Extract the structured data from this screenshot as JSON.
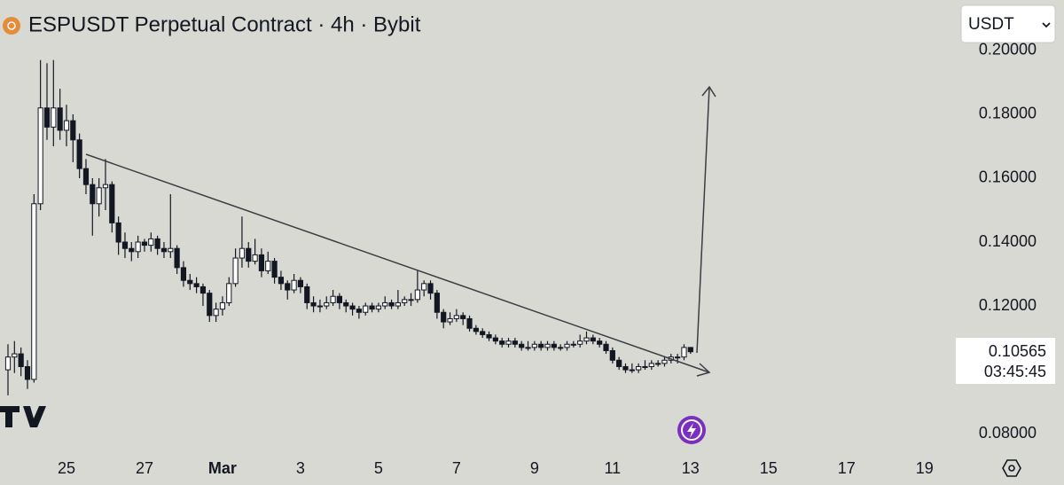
{
  "chart_data": {
    "type": "candlestick",
    "title": "ESPUSDT Perpetual Contract · 4h · Bybit",
    "currency": "USDT",
    "countdown": "03:45:45",
    "colors": {
      "up": "#ffffff",
      "down": "#131722",
      "outline": "#131722"
    },
    "xlim": [
      -1.227,
      145.4
    ],
    "ylim": [
      0.0742,
      0.2158
    ],
    "xticks": [
      {
        "value": 9,
        "label": "25"
      },
      {
        "value": 21,
        "label": "27"
      },
      {
        "value": 33,
        "label": "Mar"
      },
      {
        "value": 45,
        "label": "3"
      },
      {
        "value": 57,
        "label": "5"
      },
      {
        "value": 69,
        "label": "7"
      },
      {
        "value": 81,
        "label": "9"
      },
      {
        "value": 93,
        "label": "11"
      },
      {
        "value": 105,
        "label": "13"
      },
      {
        "value": 117,
        "label": "15"
      },
      {
        "value": 129,
        "label": "17"
      },
      {
        "value": 141,
        "label": "19"
      }
    ],
    "yticks": [
      {
        "value": 0.08,
        "label": "0.08000"
      },
      {
        "value": 0.12,
        "label": "0.12000"
      },
      {
        "value": 0.14,
        "label": "0.14000"
      },
      {
        "value": 0.16,
        "label": "0.16000"
      },
      {
        "value": 0.18,
        "label": "0.18000"
      },
      {
        "value": 0.2,
        "label": "0.20000"
      }
    ],
    "x": [
      0,
      1,
      2,
      3,
      4,
      5,
      6,
      7,
      8,
      9,
      10,
      11,
      12,
      13,
      14,
      15,
      16,
      17,
      18,
      19,
      20,
      21,
      22,
      23,
      24,
      25,
      26,
      27,
      28,
      29,
      30,
      31,
      32,
      33,
      34,
      35,
      36,
      37,
      38,
      39,
      40,
      41,
      42,
      43,
      44,
      45,
      46,
      47,
      48,
      49,
      50,
      51,
      52,
      53,
      54,
      55,
      56,
      57,
      58,
      59,
      60,
      61,
      62,
      63,
      64,
      65,
      66,
      67,
      68,
      69,
      70,
      71,
      72,
      73,
      74,
      75,
      76,
      77,
      78,
      79,
      80,
      81,
      82,
      83,
      84,
      85,
      86,
      87,
      88,
      89,
      90,
      91,
      92,
      93,
      94,
      95,
      96,
      97,
      98,
      99,
      100,
      101,
      102,
      103,
      104,
      105
    ],
    "candles": [
      [
        0.1,
        0.108,
        0.092,
        0.104
      ],
      [
        0.104,
        0.109,
        0.099,
        0.105
      ],
      [
        0.105,
        0.107,
        0.098,
        0.101
      ],
      [
        0.101,
        0.103,
        0.094,
        0.097
      ],
      [
        0.097,
        0.155,
        0.096,
        0.152
      ],
      [
        0.152,
        0.197,
        0.15,
        0.182
      ],
      [
        0.182,
        0.196,
        0.172,
        0.176
      ],
      [
        0.176,
        0.197,
        0.17,
        0.182
      ],
      [
        0.182,
        0.188,
        0.172,
        0.175
      ],
      [
        0.175,
        0.183,
        0.17,
        0.178
      ],
      [
        0.178,
        0.18,
        0.165,
        0.172
      ],
      [
        0.172,
        0.174,
        0.16,
        0.163
      ],
      [
        0.163,
        0.166,
        0.155,
        0.158
      ],
      [
        0.158,
        0.16,
        0.142,
        0.152
      ],
      [
        0.152,
        0.16,
        0.148,
        0.157
      ],
      [
        0.157,
        0.166,
        0.15,
        0.158
      ],
      [
        0.158,
        0.159,
        0.143,
        0.146
      ],
      [
        0.146,
        0.148,
        0.136,
        0.14
      ],
      [
        0.14,
        0.143,
        0.135,
        0.138
      ],
      [
        0.138,
        0.14,
        0.134,
        0.137
      ],
      [
        0.137,
        0.142,
        0.135,
        0.14
      ],
      [
        0.14,
        0.141,
        0.137,
        0.139
      ],
      [
        0.139,
        0.143,
        0.137,
        0.141
      ],
      [
        0.141,
        0.142,
        0.136,
        0.138
      ],
      [
        0.138,
        0.14,
        0.135,
        0.137
      ],
      [
        0.137,
        0.155,
        0.135,
        0.138
      ],
      [
        0.138,
        0.139,
        0.13,
        0.132
      ],
      [
        0.132,
        0.134,
        0.126,
        0.128
      ],
      [
        0.128,
        0.13,
        0.125,
        0.127
      ],
      [
        0.127,
        0.129,
        0.124,
        0.126
      ],
      [
        0.126,
        0.127,
        0.12,
        0.124
      ],
      [
        0.124,
        0.125,
        0.115,
        0.117
      ],
      [
        0.117,
        0.121,
        0.115,
        0.119
      ],
      [
        0.119,
        0.123,
        0.117,
        0.121
      ],
      [
        0.121,
        0.129,
        0.12,
        0.127
      ],
      [
        0.127,
        0.138,
        0.126,
        0.135
      ],
      [
        0.135,
        0.148,
        0.132,
        0.138
      ],
      [
        0.138,
        0.14,
        0.132,
        0.134
      ],
      [
        0.134,
        0.141,
        0.133,
        0.136
      ],
      [
        0.136,
        0.138,
        0.129,
        0.131
      ],
      [
        0.131,
        0.137,
        0.13,
        0.134
      ],
      [
        0.134,
        0.135,
        0.127,
        0.129
      ],
      [
        0.129,
        0.131,
        0.125,
        0.127
      ],
      [
        0.127,
        0.128,
        0.122,
        0.125
      ],
      [
        0.125,
        0.13,
        0.124,
        0.128
      ],
      [
        0.128,
        0.129,
        0.124,
        0.126
      ],
      [
        0.126,
        0.127,
        0.119,
        0.121
      ],
      [
        0.121,
        0.123,
        0.118,
        0.12
      ],
      [
        0.12,
        0.122,
        0.118,
        0.12
      ],
      [
        0.12,
        0.123,
        0.119,
        0.121
      ],
      [
        0.121,
        0.125,
        0.12,
        0.123
      ],
      [
        0.123,
        0.124,
        0.119,
        0.121
      ],
      [
        0.121,
        0.122,
        0.118,
        0.12
      ],
      [
        0.12,
        0.121,
        0.117,
        0.119
      ],
      [
        0.119,
        0.12,
        0.116,
        0.118
      ],
      [
        0.118,
        0.121,
        0.117,
        0.12
      ],
      [
        0.12,
        0.121,
        0.118,
        0.119
      ],
      [
        0.119,
        0.121,
        0.118,
        0.12
      ],
      [
        0.12,
        0.123,
        0.119,
        0.121
      ],
      [
        0.121,
        0.122,
        0.119,
        0.12
      ],
      [
        0.12,
        0.125,
        0.119,
        0.121
      ],
      [
        0.121,
        0.123,
        0.12,
        0.122
      ],
      [
        0.122,
        0.124,
        0.12,
        0.122
      ],
      [
        0.122,
        0.131,
        0.121,
        0.125
      ],
      [
        0.125,
        0.128,
        0.123,
        0.127
      ],
      [
        0.127,
        0.128,
        0.122,
        0.124
      ],
      [
        0.124,
        0.125,
        0.116,
        0.118
      ],
      [
        0.118,
        0.119,
        0.113,
        0.115
      ],
      [
        0.115,
        0.118,
        0.114,
        0.116
      ],
      [
        0.116,
        0.119,
        0.115,
        0.117
      ],
      [
        0.117,
        0.118,
        0.114,
        0.116
      ],
      [
        0.116,
        0.117,
        0.112,
        0.113
      ],
      [
        0.113,
        0.114,
        0.111,
        0.112
      ],
      [
        0.112,
        0.113,
        0.11,
        0.111
      ],
      [
        0.111,
        0.112,
        0.109,
        0.11
      ],
      [
        0.11,
        0.111,
        0.108,
        0.109
      ],
      [
        0.109,
        0.11,
        0.107,
        0.108
      ],
      [
        0.108,
        0.11,
        0.107,
        0.109
      ],
      [
        0.109,
        0.11,
        0.107,
        0.108
      ],
      [
        0.108,
        0.109,
        0.106,
        0.107
      ],
      [
        0.107,
        0.109,
        0.106,
        0.107
      ],
      [
        0.107,
        0.109,
        0.106,
        0.108
      ],
      [
        0.108,
        0.109,
        0.106,
        0.107
      ],
      [
        0.107,
        0.109,
        0.106,
        0.108
      ],
      [
        0.108,
        0.109,
        0.106,
        0.107
      ],
      [
        0.107,
        0.108,
        0.106,
        0.107
      ],
      [
        0.107,
        0.109,
        0.106,
        0.108
      ],
      [
        0.108,
        0.109,
        0.107,
        0.108
      ],
      [
        0.108,
        0.111,
        0.107,
        0.109
      ],
      [
        0.109,
        0.112,
        0.108,
        0.11
      ],
      [
        0.11,
        0.111,
        0.108,
        0.109
      ],
      [
        0.109,
        0.11,
        0.107,
        0.108
      ],
      [
        0.108,
        0.109,
        0.105,
        0.106
      ],
      [
        0.106,
        0.107,
        0.102,
        0.103
      ],
      [
        0.103,
        0.104,
        0.1,
        0.101
      ],
      [
        0.101,
        0.102,
        0.099,
        0.1
      ],
      [
        0.1,
        0.102,
        0.099,
        0.1
      ],
      [
        0.1,
        0.102,
        0.099,
        0.101
      ],
      [
        0.101,
        0.103,
        0.1,
        0.101
      ],
      [
        0.101,
        0.103,
        0.1,
        0.102
      ],
      [
        0.102,
        0.103,
        0.101,
        0.102
      ],
      [
        0.102,
        0.104,
        0.101,
        0.103
      ],
      [
        0.103,
        0.105,
        0.102,
        0.104
      ],
      [
        0.104,
        0.105,
        0.102,
        0.104
      ],
      [
        0.104,
        0.108,
        0.103,
        0.107
      ],
      [
        0.107,
        0.107,
        0.105,
        0.10565
      ]
    ]
  }
}
